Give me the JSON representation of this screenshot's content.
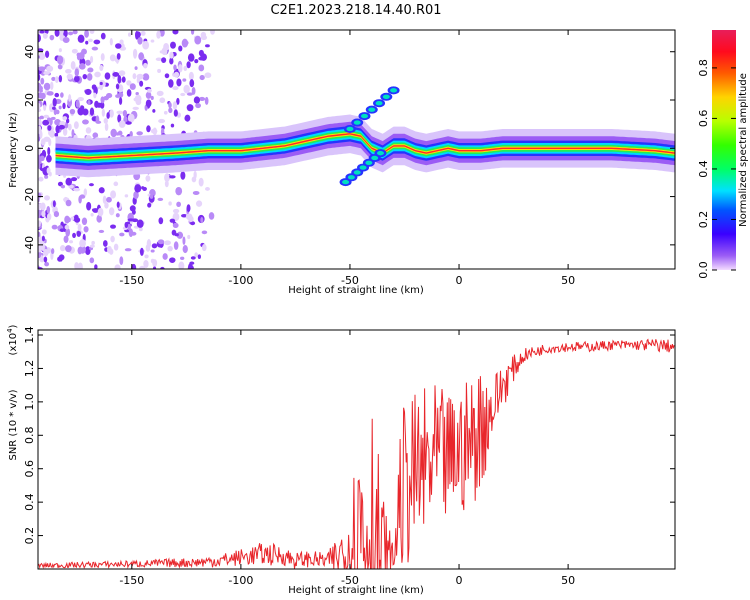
{
  "title": "C2E1.2023.218.14.40.R01",
  "colors": {
    "snr_line": "#e8262b",
    "axis": "#000000",
    "spec_base": "#9b5cf5",
    "spec_center": "#e81e5a"
  },
  "colorbar": {
    "label": "Normalized spectral amplitude",
    "ticks": [
      "0.0",
      "0.2",
      "0.4",
      "0.6",
      "0.8"
    ],
    "tick_values": [
      0.0,
      0.2,
      0.4,
      0.6,
      0.8
    ],
    "range": [
      0,
      0.95
    ],
    "colormap": "rainbow (violet→blue→cyan→green→yellow→orange→red→magenta)"
  },
  "chart_data": [
    {
      "type": "heatmap",
      "xlabel": "Height of straight line (km)",
      "ylabel": "Frequency (Hz)",
      "xlim": [
        -193,
        99
      ],
      "ylim": [
        -50,
        49
      ],
      "xticks": [
        -150,
        -100,
        -50,
        0,
        50
      ],
      "xtick_labels": [
        "-150",
        "-100",
        "-50",
        "0",
        "50"
      ],
      "yticks": [
        -40,
        -20,
        0,
        20,
        40
      ],
      "ytick_labels": [
        "-40",
        "-20",
        "0",
        "20",
        "40"
      ],
      "ridge": {
        "x": [
          -185,
          -170,
          -150,
          -130,
          -115,
          -100,
          -90,
          -80,
          -70,
          -60,
          -50,
          -45,
          -40,
          -35,
          -30,
          -25,
          -20,
          -15,
          -10,
          -5,
          0,
          10,
          20,
          30,
          50,
          70,
          90,
          99
        ],
        "y": [
          -3,
          -4,
          -3,
          -2,
          -1,
          -1,
          0,
          1,
          3,
          5,
          6,
          5,
          0,
          -2,
          1,
          1,
          -1,
          -2,
          -1,
          0,
          -1,
          -1,
          0,
          0,
          0,
          0,
          -1,
          -2
        ]
      },
      "features": [
        {
          "label": "upper branch",
          "x": [
            -50,
            -30
          ],
          "y": [
            8,
            24
          ]
        },
        {
          "label": "lower branch",
          "x": [
            -52,
            -36
          ],
          "y": [
            -14,
            -2
          ]
        }
      ]
    },
    {
      "type": "line",
      "xlabel": "Height of straight line (km)",
      "ylabel": "SNR (10 * v/v)",
      "multiplier": "(x10",
      "multiplier_exp": "4",
      "multiplier_close": ")",
      "xlim": [
        -193,
        99
      ],
      "ylim": [
        0,
        14300
      ],
      "xticks": [
        -150,
        -100,
        -50,
        0,
        50
      ],
      "xtick_labels": [
        "-150",
        "-100",
        "-50",
        "0",
        "50"
      ],
      "yticks": [
        2000,
        4000,
        6000,
        8000,
        10000,
        12000,
        14000
      ],
      "ytick_labels": [
        "0.2",
        "0.4",
        "0.6",
        "0.8",
        "1.0",
        "1.2",
        "1.4"
      ],
      "series": [
        {
          "color": "#e8262b",
          "envelope": {
            "x": [
              -193,
              -150,
              -120,
              -110,
              -100,
              -90,
              -80,
              -75,
              -70,
              -60,
              -55,
              -50,
              -47,
              -45,
              -42,
              -40,
              -38,
              -35,
              -32,
              -30,
              -28,
              -25,
              -20,
              -15,
              -10,
              -5,
              0,
              5,
              10,
              15,
              20,
              25,
              30,
              40,
              50,
              60,
              70,
              80,
              90,
              99
            ],
            "base": [
              200,
              300,
              400,
              500,
              700,
              900,
              800,
              500,
              600,
              500,
              800,
              1500,
              2500,
              3000,
              2500,
              2000,
              1500,
              800,
              500,
              400,
              3500,
              5000,
              5500,
              6000,
              6500,
              6500,
              7000,
              7500,
              8500,
              9500,
              11000,
              12000,
              12800,
              13200,
              13300,
              13300,
              13400,
              13400,
              13400,
              13300
            ],
            "amp": [
              150,
              200,
              300,
              400,
              500,
              700,
              600,
              500,
              500,
              500,
              1500,
              3000,
              5000,
              8000,
              9000,
              10000,
              7000,
              4000,
              2000,
              1000,
              4000,
              5000,
              5000,
              5000,
              4500,
              4000,
              4000,
              4000,
              4000,
              2000,
              1500,
              800,
              400,
              300,
              300,
              300,
              300,
              300,
              400,
              400
            ]
          }
        }
      ]
    }
  ]
}
